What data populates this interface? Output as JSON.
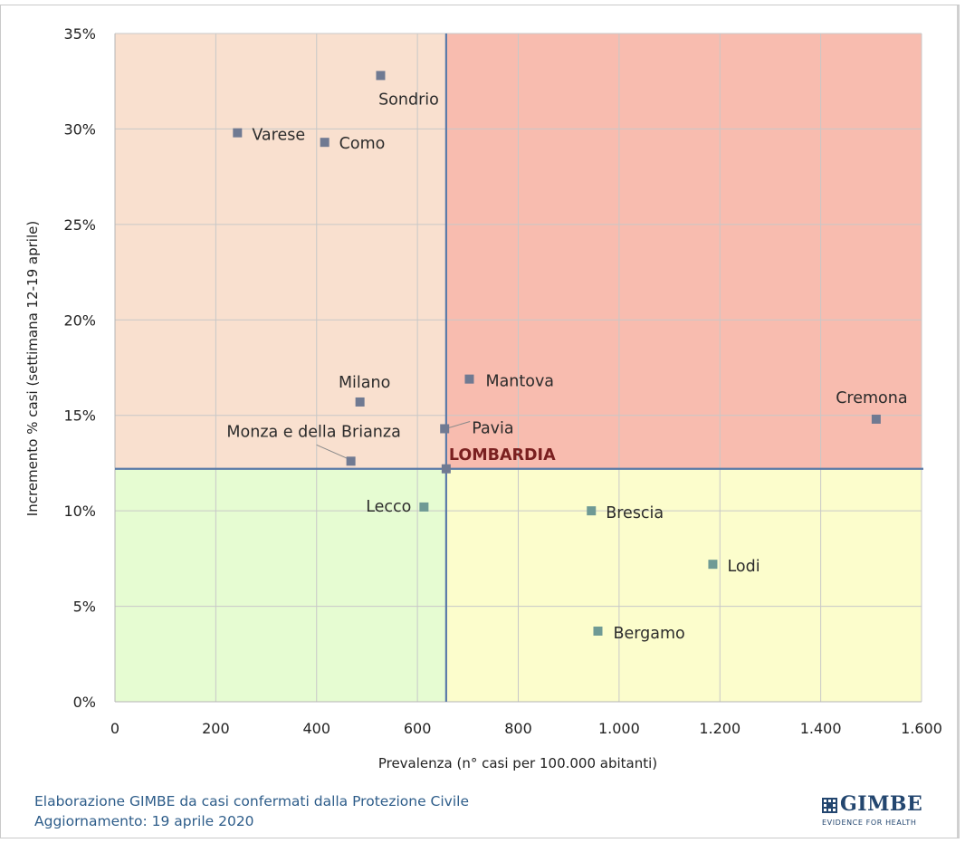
{
  "chart_data": {
    "type": "scatter",
    "xlabel": "Prevalenza  (n° casi per 100.000 abitanti)",
    "ylabel": "Incremento % casi (settimana 12-19 aprile)",
    "xlim": [
      0,
      1600
    ],
    "ylim": [
      0,
      35
    ],
    "x_ticks": [
      0,
      200,
      400,
      600,
      800,
      1000,
      1200,
      1400,
      1600
    ],
    "x_tick_labels": [
      "0",
      "200",
      "400",
      "600",
      "800",
      "1.000",
      "1.200",
      "1.400",
      "1.600"
    ],
    "y_ticks": [
      0,
      5,
      10,
      15,
      20,
      25,
      30,
      35
    ],
    "y_tick_labels": [
      "0%",
      "5%",
      "10%",
      "15%",
      "20%",
      "25%",
      "30%",
      "35%"
    ],
    "grid": true,
    "reference_lines": {
      "x": 657,
      "y": 12.2
    },
    "quadrant_colors": {
      "top_left": "#f9e0cf",
      "top_right": "#f8bcaf",
      "bottom_left": "#e6fcd2",
      "bottom_right": "#fcfdcc"
    },
    "marker_colors": {
      "upper": "#707a92",
      "lower": "#6f9a95"
    },
    "points": [
      {
        "label": "Sondrio",
        "x": 527,
        "y": 32.8
      },
      {
        "label": "Varese",
        "x": 243,
        "y": 29.8
      },
      {
        "label": "Como",
        "x": 416,
        "y": 29.3
      },
      {
        "label": "Milano",
        "x": 486,
        "y": 15.7
      },
      {
        "label": "Mantova",
        "x": 703,
        "y": 16.9
      },
      {
        "label": "Cremona",
        "x": 1510,
        "y": 14.8
      },
      {
        "label": "Pavia",
        "x": 654,
        "y": 14.3
      },
      {
        "label": "Monza e della Brianza",
        "x": 468,
        "y": 12.6
      },
      {
        "label": "LOMBARDIA",
        "x": 657,
        "y": 12.2
      },
      {
        "label": "Lecco",
        "x": 613,
        "y": 10.2
      },
      {
        "label": "Brescia",
        "x": 945,
        "y": 10.0
      },
      {
        "label": "Lodi",
        "x": 1186,
        "y": 7.2
      },
      {
        "label": "Bergamo",
        "x": 958,
        "y": 3.7
      }
    ]
  },
  "footer": {
    "line1": "Elaborazione GIMBE da casi confermati dalla Protezione Civile",
    "line2": "Aggiornamento: 19 aprile 2020"
  },
  "logo": {
    "name": "GIMBE",
    "tagline": "EVIDENCE FOR HEALTH"
  }
}
